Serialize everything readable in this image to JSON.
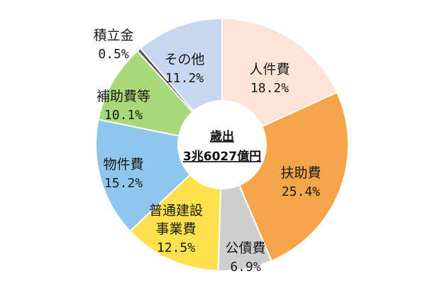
{
  "chart_data": {
    "type": "pie",
    "center_label": [
      "歳出",
      "3兆6027億円"
    ],
    "slices": [
      {
        "name": [
          "人件費"
        ],
        "value": 18.2,
        "value_label": "18.2%",
        "color": "#fce4d6"
      },
      {
        "name": [
          "扶助費"
        ],
        "value": 25.4,
        "value_label": "25.4%",
        "color": "#f6a54a"
      },
      {
        "name": [
          "公債費"
        ],
        "value": 6.9,
        "value_label": "6.9%",
        "color": "#cfcfcf"
      },
      {
        "name": [
          "普通建設",
          "事業費"
        ],
        "value": 12.5,
        "value_label": "12.5%",
        "color": "#ffe14d"
      },
      {
        "name": [
          "物件費"
        ],
        "value": 15.2,
        "value_label": "15.2%",
        "color": "#8ec6ef"
      },
      {
        "name": [
          "補助費等"
        ],
        "value": 10.1,
        "value_label": "10.1%",
        "color": "#a9d879"
      },
      {
        "name": [
          "積立金"
        ],
        "value": 0.5,
        "value_label": "0.5%",
        "color": "#555555"
      },
      {
        "name": [
          "その他"
        ],
        "value": 11.2,
        "value_label": "11.2%",
        "color": "#c6d7ef"
      }
    ]
  }
}
